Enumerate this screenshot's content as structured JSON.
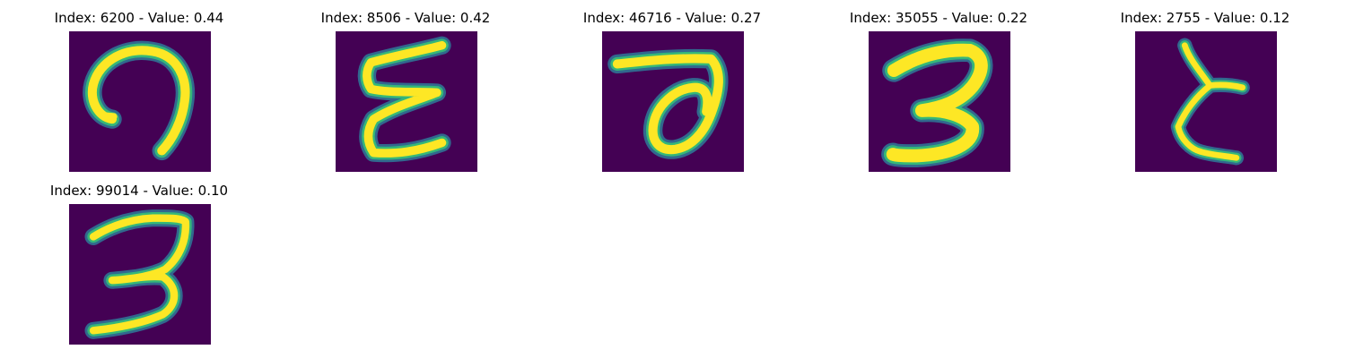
{
  "figure": {
    "panels": [
      {
        "index": 6200,
        "value": 0.44,
        "title": "Index: 6200 - Value: 0.44",
        "glyph": "character-like-n"
      },
      {
        "index": 8506,
        "value": 0.42,
        "title": "Index: 8506 - Value: 0.42",
        "glyph": "character-like-epsilon"
      },
      {
        "index": 46716,
        "value": 0.27,
        "title": "Index: 46716 - Value: 0.27",
        "glyph": "character-like-a"
      },
      {
        "index": 35055,
        "value": 0.22,
        "title": "Index: 35055 - Value: 0.22",
        "glyph": "digit-like-3"
      },
      {
        "index": 2755,
        "value": 0.12,
        "title": "Index: 2755 - Value: 0.12",
        "glyph": "character-like-branch"
      },
      {
        "index": 99014,
        "value": 0.1,
        "title": "Index: 99014 - Value: 0.10",
        "glyph": "digit-like-3"
      }
    ],
    "colors": {
      "background": "#440154",
      "stroke_core": "#fde725",
      "stroke_mid": "#35b779",
      "stroke_edge": "#31688e"
    }
  }
}
